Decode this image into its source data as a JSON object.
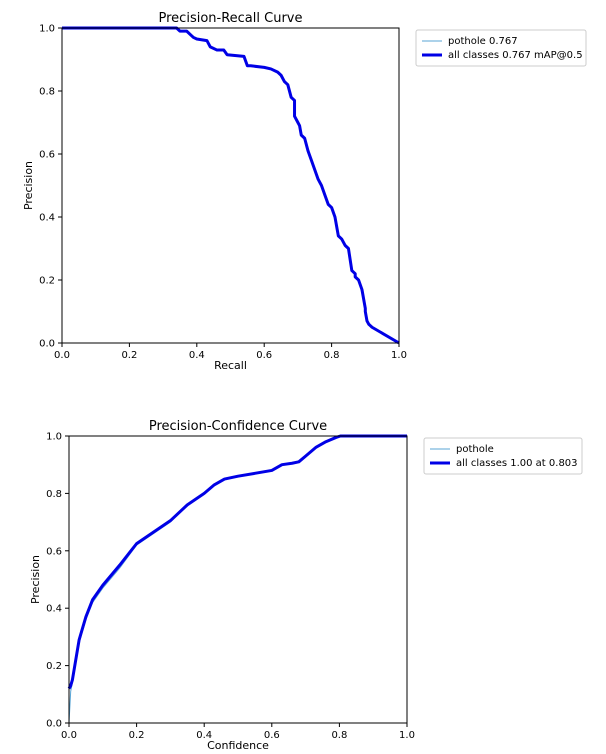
{
  "chart_data": [
    {
      "type": "line",
      "title": "Precision-Recall Curve",
      "xlabel": "Recall",
      "ylabel": "Precision",
      "xlim": [
        0,
        1
      ],
      "ylim": [
        0,
        1
      ],
      "xticks": [
        "0.0",
        "0.2",
        "0.4",
        "0.6",
        "0.8",
        "1.0"
      ],
      "yticks": [
        "0.0",
        "0.2",
        "0.4",
        "0.6",
        "0.8",
        "1.0"
      ],
      "grid": false,
      "legend_position": "outside-right",
      "legend": [
        "pothole 0.767",
        "all classes 0.767 mAP@0.5"
      ],
      "colors": {
        "pothole": "#5aa6d6",
        "all": "#0000e6"
      },
      "series": [
        {
          "name": "pothole 0.767",
          "x": [
            0,
            0.34,
            0.35,
            0.37,
            0.38,
            0.39,
            0.4,
            0.43,
            0.44,
            0.46,
            0.48,
            0.49,
            0.54,
            0.545,
            0.55,
            0.56,
            0.6,
            0.62,
            0.64,
            0.65,
            0.66,
            0.67,
            0.68,
            0.69,
            0.69,
            0.7,
            0.705,
            0.71,
            0.72,
            0.73,
            0.74,
            0.75,
            0.76,
            0.77,
            0.78,
            0.79,
            0.8,
            0.81,
            0.82,
            0.83,
            0.84,
            0.85,
            0.86,
            0.87,
            0.87,
            0.88,
            0.89,
            0.9,
            0.9,
            0.905,
            0.91,
            0.915,
            0.92,
            1.0
          ],
          "y": [
            1.0,
            1.0,
            0.99,
            0.99,
            0.98,
            0.97,
            0.965,
            0.96,
            0.94,
            0.93,
            0.93,
            0.915,
            0.91,
            0.895,
            0.88,
            0.88,
            0.875,
            0.87,
            0.86,
            0.85,
            0.83,
            0.82,
            0.78,
            0.77,
            0.72,
            0.7,
            0.69,
            0.66,
            0.65,
            0.61,
            0.58,
            0.55,
            0.52,
            0.5,
            0.47,
            0.44,
            0.43,
            0.4,
            0.34,
            0.33,
            0.31,
            0.3,
            0.23,
            0.22,
            0.21,
            0.2,
            0.17,
            0.11,
            0.1,
            0.07,
            0.06,
            0.055,
            0.05,
            0.0
          ]
        },
        {
          "name": "all classes 0.767 mAP@0.5",
          "x": [
            0,
            0.34,
            0.35,
            0.37,
            0.38,
            0.39,
            0.4,
            0.43,
            0.44,
            0.46,
            0.48,
            0.49,
            0.54,
            0.545,
            0.55,
            0.56,
            0.6,
            0.62,
            0.64,
            0.65,
            0.66,
            0.67,
            0.68,
            0.69,
            0.69,
            0.7,
            0.705,
            0.71,
            0.72,
            0.73,
            0.74,
            0.75,
            0.76,
            0.77,
            0.78,
            0.79,
            0.8,
            0.81,
            0.82,
            0.83,
            0.84,
            0.85,
            0.86,
            0.87,
            0.87,
            0.88,
            0.89,
            0.9,
            0.9,
            0.905,
            0.91,
            0.915,
            0.92,
            1.0
          ],
          "y": [
            1.0,
            1.0,
            0.99,
            0.99,
            0.98,
            0.97,
            0.965,
            0.96,
            0.94,
            0.93,
            0.93,
            0.915,
            0.91,
            0.895,
            0.88,
            0.88,
            0.875,
            0.87,
            0.86,
            0.85,
            0.83,
            0.82,
            0.78,
            0.77,
            0.72,
            0.7,
            0.69,
            0.66,
            0.65,
            0.61,
            0.58,
            0.55,
            0.52,
            0.5,
            0.47,
            0.44,
            0.43,
            0.4,
            0.34,
            0.33,
            0.31,
            0.3,
            0.23,
            0.22,
            0.21,
            0.2,
            0.17,
            0.11,
            0.1,
            0.07,
            0.06,
            0.055,
            0.05,
            0.0
          ]
        }
      ]
    },
    {
      "type": "line",
      "title": "Precision-Confidence Curve",
      "xlabel": "Confidence",
      "ylabel": "Precision",
      "xlim": [
        0,
        1
      ],
      "ylim": [
        0,
        1
      ],
      "xticks": [
        "0.0",
        "0.2",
        "0.4",
        "0.6",
        "0.8",
        "1.0"
      ],
      "yticks": [
        "0.0",
        "0.2",
        "0.4",
        "0.6",
        "0.8",
        "1.0"
      ],
      "grid": false,
      "legend_position": "outside-right",
      "legend": [
        "pothole",
        "all classes 1.00 at 0.803"
      ],
      "colors": {
        "pothole": "#5aa6d6",
        "all": "#0000e6"
      },
      "series": [
        {
          "name": "pothole",
          "x": [
            0,
            0.005,
            0.01,
            0.02,
            0.03,
            0.05,
            0.07,
            0.1,
            0.15,
            0.2,
            0.25,
            0.3,
            0.35,
            0.4,
            0.43,
            0.46,
            0.5,
            0.55,
            0.6,
            0.63,
            0.66,
            0.68,
            0.7,
            0.73,
            0.76,
            0.79,
            0.803,
            0.85,
            0.9,
            1.0
          ],
          "y": [
            0.0,
            0.11,
            0.14,
            0.21,
            0.28,
            0.36,
            0.42,
            0.47,
            0.54,
            0.62,
            0.66,
            0.7,
            0.76,
            0.8,
            0.83,
            0.85,
            0.86,
            0.87,
            0.88,
            0.9,
            0.905,
            0.91,
            0.93,
            0.96,
            0.98,
            0.995,
            1.0,
            1.0,
            1.0,
            1.0
          ]
        },
        {
          "name": "all classes 1.00 at 0.803",
          "x": [
            0,
            0.005,
            0.01,
            0.02,
            0.03,
            0.05,
            0.07,
            0.1,
            0.15,
            0.2,
            0.25,
            0.3,
            0.35,
            0.4,
            0.43,
            0.46,
            0.5,
            0.55,
            0.6,
            0.63,
            0.66,
            0.68,
            0.7,
            0.73,
            0.76,
            0.79,
            0.803,
            0.85,
            0.9,
            1.0
          ],
          "y": [
            0.12,
            0.13,
            0.15,
            0.22,
            0.29,
            0.37,
            0.43,
            0.48,
            0.55,
            0.625,
            0.665,
            0.705,
            0.76,
            0.8,
            0.83,
            0.85,
            0.86,
            0.87,
            0.88,
            0.9,
            0.905,
            0.91,
            0.93,
            0.96,
            0.98,
            0.995,
            1.0,
            1.0,
            1.0,
            1.0
          ]
        }
      ]
    }
  ]
}
